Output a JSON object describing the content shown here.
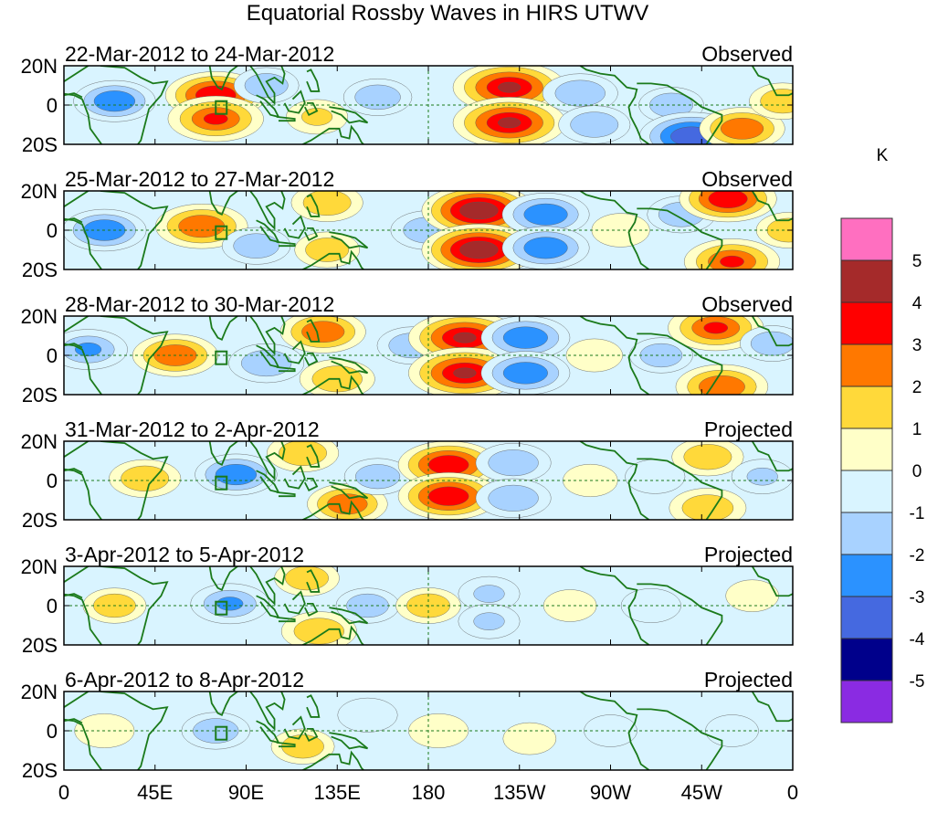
{
  "chart_data": {
    "type": "heatmap",
    "title": "Equatorial Rossby Waves in HIRS UTWV",
    "colorbar": {
      "unit": "K",
      "levels": [
        "5",
        "4",
        "3",
        "2",
        "1",
        "0",
        "-1",
        "-2",
        "-3",
        "-4",
        "-5"
      ],
      "colors": [
        "#ff6fc0",
        "#a52a2a",
        "#ff0000",
        "#ff7800",
        "#ffd93a",
        "#ffffc8",
        "#d9f4ff",
        "#a8d2ff",
        "#2b92ff",
        "#4569e0",
        "#00008b",
        "#8a2be2"
      ]
    },
    "x_ticks": [
      "0",
      "45E",
      "90E",
      "135E",
      "180",
      "135W",
      "90W",
      "45W",
      "0"
    ],
    "x_tick_lons": [
      0,
      45,
      90,
      135,
      180,
      225,
      270,
      315,
      360
    ],
    "y_ticks": [
      "20N",
      "0",
      "20S"
    ],
    "y_tick_lats": [
      20,
      0,
      -20
    ],
    "xlim": [
      0,
      360
    ],
    "ylim": [
      -20,
      20
    ],
    "panels": [
      {
        "period": "22-Mar-2012 to 24-Mar-2012",
        "status": "Observed",
        "anomalies": [
          {
            "lon": 25,
            "lat": 2,
            "value": -2.2
          },
          {
            "lon": 75,
            "lat": 5,
            "value": 3.3
          },
          {
            "lon": 75,
            "lat": -7,
            "value": 3.0
          },
          {
            "lon": 100,
            "lat": 10,
            "value": -1.2
          },
          {
            "lon": 125,
            "lat": -6,
            "value": 1.0
          },
          {
            "lon": 155,
            "lat": 4,
            "value": -1.4
          },
          {
            "lon": 220,
            "lat": 9,
            "value": 4.0
          },
          {
            "lon": 220,
            "lat": -9,
            "value": 4.0
          },
          {
            "lon": 255,
            "lat": 6,
            "value": -1.8
          },
          {
            "lon": 262,
            "lat": -10,
            "value": -1.6
          },
          {
            "lon": 300,
            "lat": 0,
            "value": -1.2
          },
          {
            "lon": 310,
            "lat": -16,
            "value": -3.5
          },
          {
            "lon": 335,
            "lat": -12,
            "value": 2.4
          },
          {
            "lon": 355,
            "lat": 2,
            "value": 1.3
          }
        ]
      },
      {
        "period": "25-Mar-2012 to 27-Mar-2012",
        "status": "Observed",
        "anomalies": [
          {
            "lon": 20,
            "lat": 0,
            "value": -2.3
          },
          {
            "lon": 68,
            "lat": 2,
            "value": 2.8
          },
          {
            "lon": 95,
            "lat": -8,
            "value": -1.4
          },
          {
            "lon": 130,
            "lat": 14,
            "value": 1.6
          },
          {
            "lon": 130,
            "lat": -10,
            "value": 1.2
          },
          {
            "lon": 180,
            "lat": 0,
            "value": -1.8
          },
          {
            "lon": 205,
            "lat": 10,
            "value": 4.1
          },
          {
            "lon": 205,
            "lat": -10,
            "value": 4.1
          },
          {
            "lon": 238,
            "lat": 8,
            "value": -2.5
          },
          {
            "lon": 238,
            "lat": -9,
            "value": -2.5
          },
          {
            "lon": 275,
            "lat": 0,
            "value": 0.8
          },
          {
            "lon": 305,
            "lat": 8,
            "value": -1.4
          },
          {
            "lon": 328,
            "lat": 16,
            "value": 3.1
          },
          {
            "lon": 330,
            "lat": -16,
            "value": 3.0
          },
          {
            "lon": 358,
            "lat": 0,
            "value": 1.2
          }
        ]
      },
      {
        "period": "28-Mar-2012 to 30-Mar-2012",
        "status": "Observed",
        "anomalies": [
          {
            "lon": 12,
            "lat": 3,
            "value": -2.0
          },
          {
            "lon": 55,
            "lat": 0,
            "value": 2.4
          },
          {
            "lon": 100,
            "lat": -4,
            "value": -1.8
          },
          {
            "lon": 128,
            "lat": 12,
            "value": 2.4
          },
          {
            "lon": 135,
            "lat": -12,
            "value": 1.8
          },
          {
            "lon": 172,
            "lat": 5,
            "value": -1.5
          },
          {
            "lon": 198,
            "lat": 9,
            "value": 4.0
          },
          {
            "lon": 198,
            "lat": -9,
            "value": 4.0
          },
          {
            "lon": 228,
            "lat": 9,
            "value": -2.6
          },
          {
            "lon": 228,
            "lat": -9,
            "value": -2.6
          },
          {
            "lon": 262,
            "lat": 0,
            "value": 0.7
          },
          {
            "lon": 295,
            "lat": 0,
            "value": -1.1
          },
          {
            "lon": 322,
            "lat": 14,
            "value": 3.0
          },
          {
            "lon": 325,
            "lat": -16,
            "value": 2.8
          },
          {
            "lon": 350,
            "lat": 6,
            "value": -1.2
          }
        ]
      },
      {
        "period": "31-Mar-2012 to 2-Apr-2012",
        "status": "Projected",
        "anomalies": [
          {
            "lon": 40,
            "lat": 1,
            "value": 1.6
          },
          {
            "lon": 85,
            "lat": 3,
            "value": -2.2
          },
          {
            "lon": 118,
            "lat": 14,
            "value": 1.6
          },
          {
            "lon": 140,
            "lat": -12,
            "value": 2.1
          },
          {
            "lon": 155,
            "lat": 2,
            "value": -1.3
          },
          {
            "lon": 190,
            "lat": 8,
            "value": 3.3
          },
          {
            "lon": 190,
            "lat": -8,
            "value": 3.3
          },
          {
            "lon": 222,
            "lat": 9,
            "value": -1.8
          },
          {
            "lon": 222,
            "lat": -9,
            "value": -1.8
          },
          {
            "lon": 260,
            "lat": 0,
            "value": 0.6
          },
          {
            "lon": 292,
            "lat": 2,
            "value": -0.9
          },
          {
            "lon": 318,
            "lat": 12,
            "value": 1.6
          },
          {
            "lon": 318,
            "lat": -14,
            "value": 1.9
          },
          {
            "lon": 345,
            "lat": 2,
            "value": -1.0
          }
        ]
      },
      {
        "period": "3-Apr-2012 to 5-Apr-2012",
        "status": "Projected",
        "anomalies": [
          {
            "lon": 25,
            "lat": 0,
            "value": 1.1
          },
          {
            "lon": 82,
            "lat": 1,
            "value": -2.0
          },
          {
            "lon": 120,
            "lat": 14,
            "value": 1.2
          },
          {
            "lon": 126,
            "lat": -13,
            "value": 1.8
          },
          {
            "lon": 150,
            "lat": 0,
            "value": -1.1
          },
          {
            "lon": 180,
            "lat": 0,
            "value": 1.2
          },
          {
            "lon": 210,
            "lat": 6,
            "value": -1.0
          },
          {
            "lon": 210,
            "lat": -8,
            "value": -1.0
          },
          {
            "lon": 250,
            "lat": 0,
            "value": 0.5
          },
          {
            "lon": 290,
            "lat": 0,
            "value": -0.9
          },
          {
            "lon": 340,
            "lat": 5,
            "value": 0.5
          }
        ]
      },
      {
        "period": "6-Apr-2012 to 8-Apr-2012",
        "status": "Projected",
        "anomalies": [
          {
            "lon": 20,
            "lat": 0,
            "value": 0.9
          },
          {
            "lon": 75,
            "lat": 0,
            "value": -1.4
          },
          {
            "lon": 118,
            "lat": -8,
            "value": 1.1
          },
          {
            "lon": 150,
            "lat": 8,
            "value": -0.9
          },
          {
            "lon": 185,
            "lat": 0,
            "value": 0.9
          },
          {
            "lon": 230,
            "lat": -4,
            "value": 0.5
          },
          {
            "lon": 270,
            "lat": 0,
            "value": -0.5
          },
          {
            "lon": 330,
            "lat": 0,
            "value": -0.5
          }
        ]
      }
    ]
  }
}
